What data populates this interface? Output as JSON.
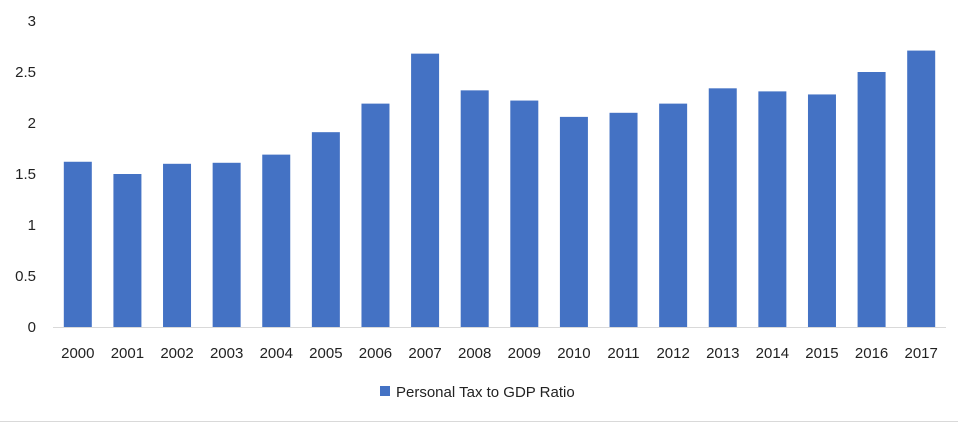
{
  "chart_data": {
    "type": "bar",
    "categories": [
      "2000",
      "2001",
      "2002",
      "2003",
      "2004",
      "2005",
      "2006",
      "2007",
      "2008",
      "2009",
      "2010",
      "2011",
      "2012",
      "2013",
      "2014",
      "2015",
      "2016",
      "2017"
    ],
    "series": [
      {
        "name": "Personal Tax to GDP Ratio",
        "color": "#4472c4",
        "values": [
          1.62,
          1.5,
          1.6,
          1.61,
          1.69,
          1.91,
          2.19,
          2.68,
          2.32,
          2.22,
          2.06,
          2.1,
          2.19,
          2.34,
          2.31,
          2.28,
          2.5,
          2.71
        ]
      }
    ],
    "title": "",
    "xlabel": "",
    "ylabel": "",
    "ylim": [
      0,
      3
    ],
    "yticks": [
      "0",
      "0.5",
      "1",
      "1.5",
      "2",
      "2.5",
      "3"
    ],
    "grid": false,
    "legend_position": "bottom"
  }
}
